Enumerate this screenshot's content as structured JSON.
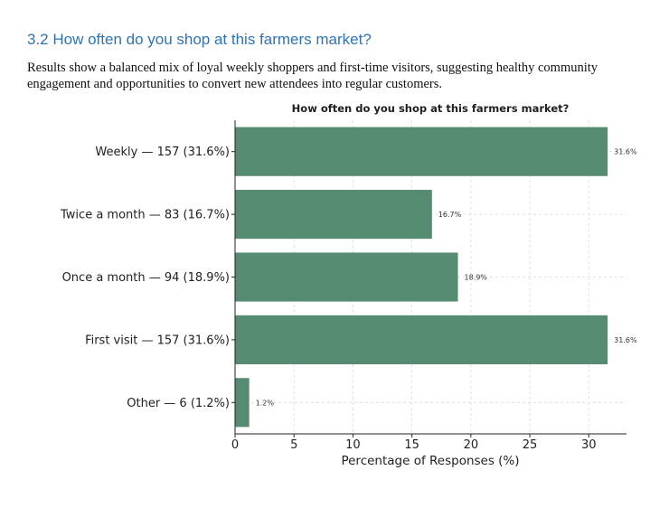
{
  "section": {
    "heading": "3.2 How often do you shop at this farmers market?",
    "summary": "Results show a balanced mix of loyal weekly shoppers and first-time visitors, suggesting healthy community engagement and opportunities to convert new attendees into regular customers."
  },
  "chart_data": {
    "type": "bar",
    "orientation": "horizontal",
    "title": "How often do you shop at this farmers market?",
    "xlabel": "Percentage of Responses (%)",
    "ylabel": "",
    "categories": [
      "Weekly — 157 (31.6%)",
      "Twice a month — 83 (16.7%)",
      "Once a month — 94 (18.9%)",
      "First visit — 157 (31.6%)",
      "Other — 6 (1.2%)"
    ],
    "values": [
      31.6,
      16.7,
      18.9,
      31.6,
      1.2
    ],
    "value_labels": [
      "31.6%",
      "16.7%",
      "18.9%",
      "31.6%",
      "1.2%"
    ],
    "xlim": [
      0,
      33.2
    ],
    "xticks": [
      0,
      5,
      10,
      15,
      20,
      25,
      30
    ],
    "grid": "x-dashed",
    "bar_color": "#548b71",
    "grid_color": "#d9d9d9"
  }
}
